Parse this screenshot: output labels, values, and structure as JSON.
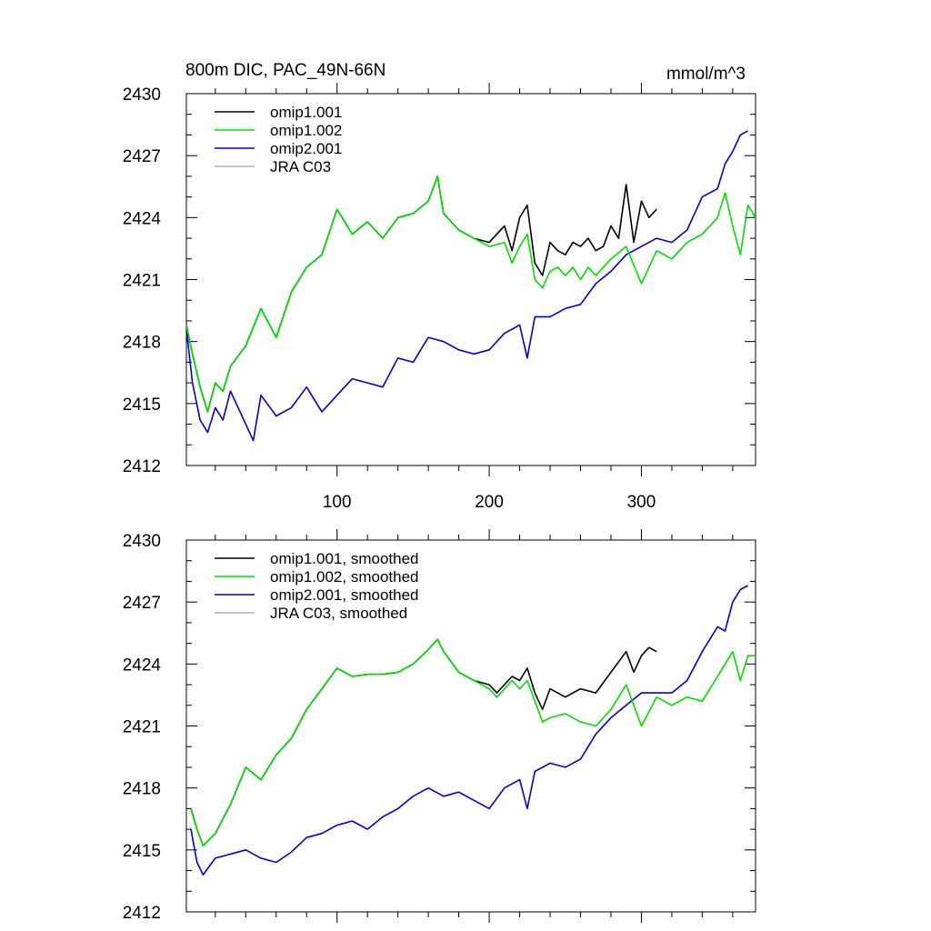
{
  "chart_data": [
    {
      "type": "line",
      "title": "800m DIC, PAC_49N-66N",
      "units": "mmol/m^3",
      "xlim": [
        1,
        375
      ],
      "ylim": [
        2412,
        2430
      ],
      "yticks": [
        2412,
        2415,
        2418,
        2421,
        2424,
        2427,
        2430
      ],
      "xticks": [
        100,
        200,
        300
      ],
      "xtick_labels": [
        "100",
        "200",
        "300"
      ],
      "legend_position": "top-left",
      "colors": {
        "omip1.001": "#000000",
        "omip1.002": "#00e000",
        "omip2.001": "#0000dd",
        "JRA C03": "#b4b4b4"
      },
      "series": [
        {
          "name": "omip1.001",
          "color": "#000000",
          "x": [
            1,
            5,
            10,
            15,
            20,
            25,
            30,
            40,
            50,
            60,
            70,
            80,
            90,
            100,
            110,
            120,
            130,
            140,
            150,
            160,
            166,
            170,
            180,
            190,
            200,
            210,
            215,
            220,
            225,
            230,
            235,
            240,
            245,
            250,
            255,
            260,
            265,
            270,
            275,
            280,
            285,
            290,
            295,
            300,
            305,
            310
          ],
          "y": [
            2418.8,
            2417.4,
            2415.8,
            2414.6,
            2416.0,
            2415.6,
            2416.8,
            2417.8,
            2419.6,
            2418.2,
            2420.4,
            2421.6,
            2422.2,
            2424.4,
            2423.2,
            2423.8,
            2423.0,
            2424.0,
            2424.2,
            2424.8,
            2426.0,
            2424.2,
            2423.4,
            2423.0,
            2422.8,
            2423.6,
            2422.4,
            2424.0,
            2424.6,
            2421.8,
            2421.2,
            2422.8,
            2422.4,
            2422.2,
            2422.8,
            2422.6,
            2423.0,
            2422.4,
            2422.6,
            2423.6,
            2423.0,
            2425.6,
            2422.8,
            2424.8,
            2424.0,
            2424.4
          ]
        },
        {
          "name": "omip1.002",
          "color": "#00e000",
          "x": [
            1,
            5,
            10,
            15,
            20,
            25,
            30,
            40,
            50,
            60,
            70,
            80,
            90,
            100,
            110,
            120,
            130,
            140,
            150,
            160,
            166,
            170,
            180,
            190,
            200,
            210,
            215,
            220,
            225,
            230,
            235,
            240,
            245,
            250,
            255,
            260,
            265,
            270,
            280,
            290,
            300,
            310,
            320,
            330,
            340,
            350,
            355,
            360,
            365,
            370,
            375
          ],
          "y": [
            2418.8,
            2417.4,
            2415.8,
            2414.6,
            2416.0,
            2415.6,
            2416.8,
            2417.8,
            2419.6,
            2418.2,
            2420.4,
            2421.6,
            2422.2,
            2424.4,
            2423.2,
            2423.8,
            2423.0,
            2424.0,
            2424.2,
            2424.8,
            2426.0,
            2424.2,
            2423.4,
            2423.0,
            2422.6,
            2422.8,
            2421.8,
            2422.6,
            2423.2,
            2421.0,
            2420.6,
            2421.4,
            2421.6,
            2421.2,
            2421.6,
            2421.0,
            2421.6,
            2421.2,
            2422.0,
            2422.6,
            2420.8,
            2422.4,
            2422.0,
            2422.8,
            2423.2,
            2424.0,
            2425.2,
            2423.6,
            2422.2,
            2424.6,
            2424.0
          ]
        },
        {
          "name": "omip2.001",
          "color": "#0000dd",
          "x": [
            1,
            5,
            10,
            15,
            20,
            25,
            30,
            40,
            45,
            50,
            60,
            70,
            80,
            90,
            100,
            110,
            120,
            130,
            140,
            150,
            160,
            170,
            180,
            190,
            200,
            210,
            220,
            225,
            230,
            240,
            250,
            260,
            270,
            280,
            290,
            300,
            310,
            320,
            330,
            340,
            350,
            355,
            360,
            365,
            370
          ],
          "y": [
            2418.6,
            2416.0,
            2414.2,
            2413.6,
            2414.8,
            2414.2,
            2415.6,
            2414.0,
            2413.2,
            2415.4,
            2414.4,
            2414.8,
            2415.8,
            2414.6,
            2415.4,
            2416.2,
            2416.0,
            2415.8,
            2417.2,
            2417.0,
            2418.2,
            2418.0,
            2417.6,
            2417.4,
            2417.6,
            2418.4,
            2418.8,
            2417.2,
            2419.2,
            2419.2,
            2419.6,
            2419.8,
            2420.8,
            2421.4,
            2422.2,
            2422.6,
            2423.0,
            2422.8,
            2423.4,
            2425.0,
            2425.4,
            2426.6,
            2427.2,
            2428.0,
            2428.2
          ]
        },
        {
          "name": "JRA C03",
          "color": "#b4b4b4",
          "x": [],
          "y": []
        }
      ]
    },
    {
      "type": "line",
      "title": "",
      "units": "",
      "xlim": [
        1,
        375
      ],
      "ylim": [
        2412,
        2430
      ],
      "yticks": [
        2412,
        2415,
        2418,
        2421,
        2424,
        2427,
        2430
      ],
      "xticks": [
        100,
        200,
        300
      ],
      "xtick_labels": [],
      "legend_position": "top-left",
      "colors": {
        "omip1.001": "#000000",
        "omip1.002": "#00e000",
        "omip2.001": "#0000dd",
        "JRA C03": "#b4b4b4"
      },
      "series": [
        {
          "name": "omip1.001, smoothed",
          "color": "#000000",
          "x": [
            4,
            8,
            12,
            20,
            30,
            40,
            50,
            60,
            70,
            80,
            90,
            100,
            110,
            120,
            130,
            140,
            150,
            160,
            166,
            170,
            180,
            190,
            200,
            205,
            210,
            215,
            220,
            225,
            230,
            235,
            240,
            250,
            260,
            270,
            280,
            290,
            295,
            300,
            305,
            310
          ],
          "y": [
            2417.0,
            2416.0,
            2415.2,
            2415.8,
            2417.2,
            2419.0,
            2418.4,
            2419.6,
            2420.4,
            2421.8,
            2422.8,
            2423.8,
            2423.4,
            2423.5,
            2423.5,
            2423.6,
            2424.0,
            2424.7,
            2425.2,
            2424.6,
            2423.6,
            2423.2,
            2423.0,
            2422.6,
            2423.0,
            2423.4,
            2423.2,
            2423.8,
            2422.6,
            2421.8,
            2422.8,
            2422.4,
            2422.8,
            2422.6,
            2423.6,
            2424.6,
            2423.6,
            2424.4,
            2424.8,
            2424.6
          ]
        },
        {
          "name": "omip1.002, smoothed",
          "color": "#00e000",
          "x": [
            4,
            8,
            12,
            20,
            30,
            40,
            50,
            60,
            70,
            80,
            90,
            100,
            110,
            120,
            130,
            140,
            150,
            160,
            166,
            170,
            180,
            190,
            200,
            205,
            210,
            215,
            220,
            225,
            230,
            235,
            240,
            250,
            260,
            270,
            280,
            290,
            300,
            310,
            320,
            330,
            340,
            350,
            355,
            360,
            365,
            370,
            375
          ],
          "y": [
            2417.0,
            2416.0,
            2415.2,
            2415.8,
            2417.2,
            2419.0,
            2418.4,
            2419.6,
            2420.4,
            2421.8,
            2422.8,
            2423.8,
            2423.4,
            2423.5,
            2423.5,
            2423.6,
            2424.0,
            2424.7,
            2425.2,
            2424.6,
            2423.6,
            2423.2,
            2422.8,
            2422.4,
            2422.8,
            2423.2,
            2422.8,
            2423.2,
            2422.2,
            2421.2,
            2421.4,
            2421.6,
            2421.2,
            2421.0,
            2421.8,
            2423.0,
            2421.0,
            2422.4,
            2422.0,
            2422.4,
            2422.2,
            2423.4,
            2424.0,
            2424.6,
            2423.2,
            2424.4,
            2424.4
          ]
        },
        {
          "name": "omip2.001, smoothed",
          "color": "#0000dd",
          "x": [
            4,
            8,
            12,
            20,
            30,
            40,
            50,
            60,
            70,
            80,
            90,
            100,
            110,
            120,
            130,
            140,
            150,
            160,
            170,
            180,
            190,
            200,
            210,
            220,
            225,
            230,
            240,
            250,
            260,
            270,
            280,
            290,
            300,
            310,
            320,
            330,
            340,
            350,
            355,
            360,
            365,
            370
          ],
          "y": [
            2416.0,
            2414.4,
            2413.8,
            2414.6,
            2414.8,
            2415.0,
            2414.6,
            2414.4,
            2414.9,
            2415.6,
            2415.8,
            2416.2,
            2416.4,
            2416.0,
            2416.6,
            2417.0,
            2417.6,
            2418.0,
            2417.6,
            2417.8,
            2417.4,
            2417.0,
            2418.0,
            2418.4,
            2417.0,
            2418.8,
            2419.2,
            2419.0,
            2419.4,
            2420.6,
            2421.4,
            2422.0,
            2422.6,
            2422.6,
            2422.6,
            2423.2,
            2424.6,
            2425.8,
            2425.6,
            2427.0,
            2427.6,
            2427.8
          ]
        },
        {
          "name": "JRA C03, smoothed",
          "color": "#b4b4b4",
          "x": [],
          "y": []
        }
      ]
    }
  ]
}
